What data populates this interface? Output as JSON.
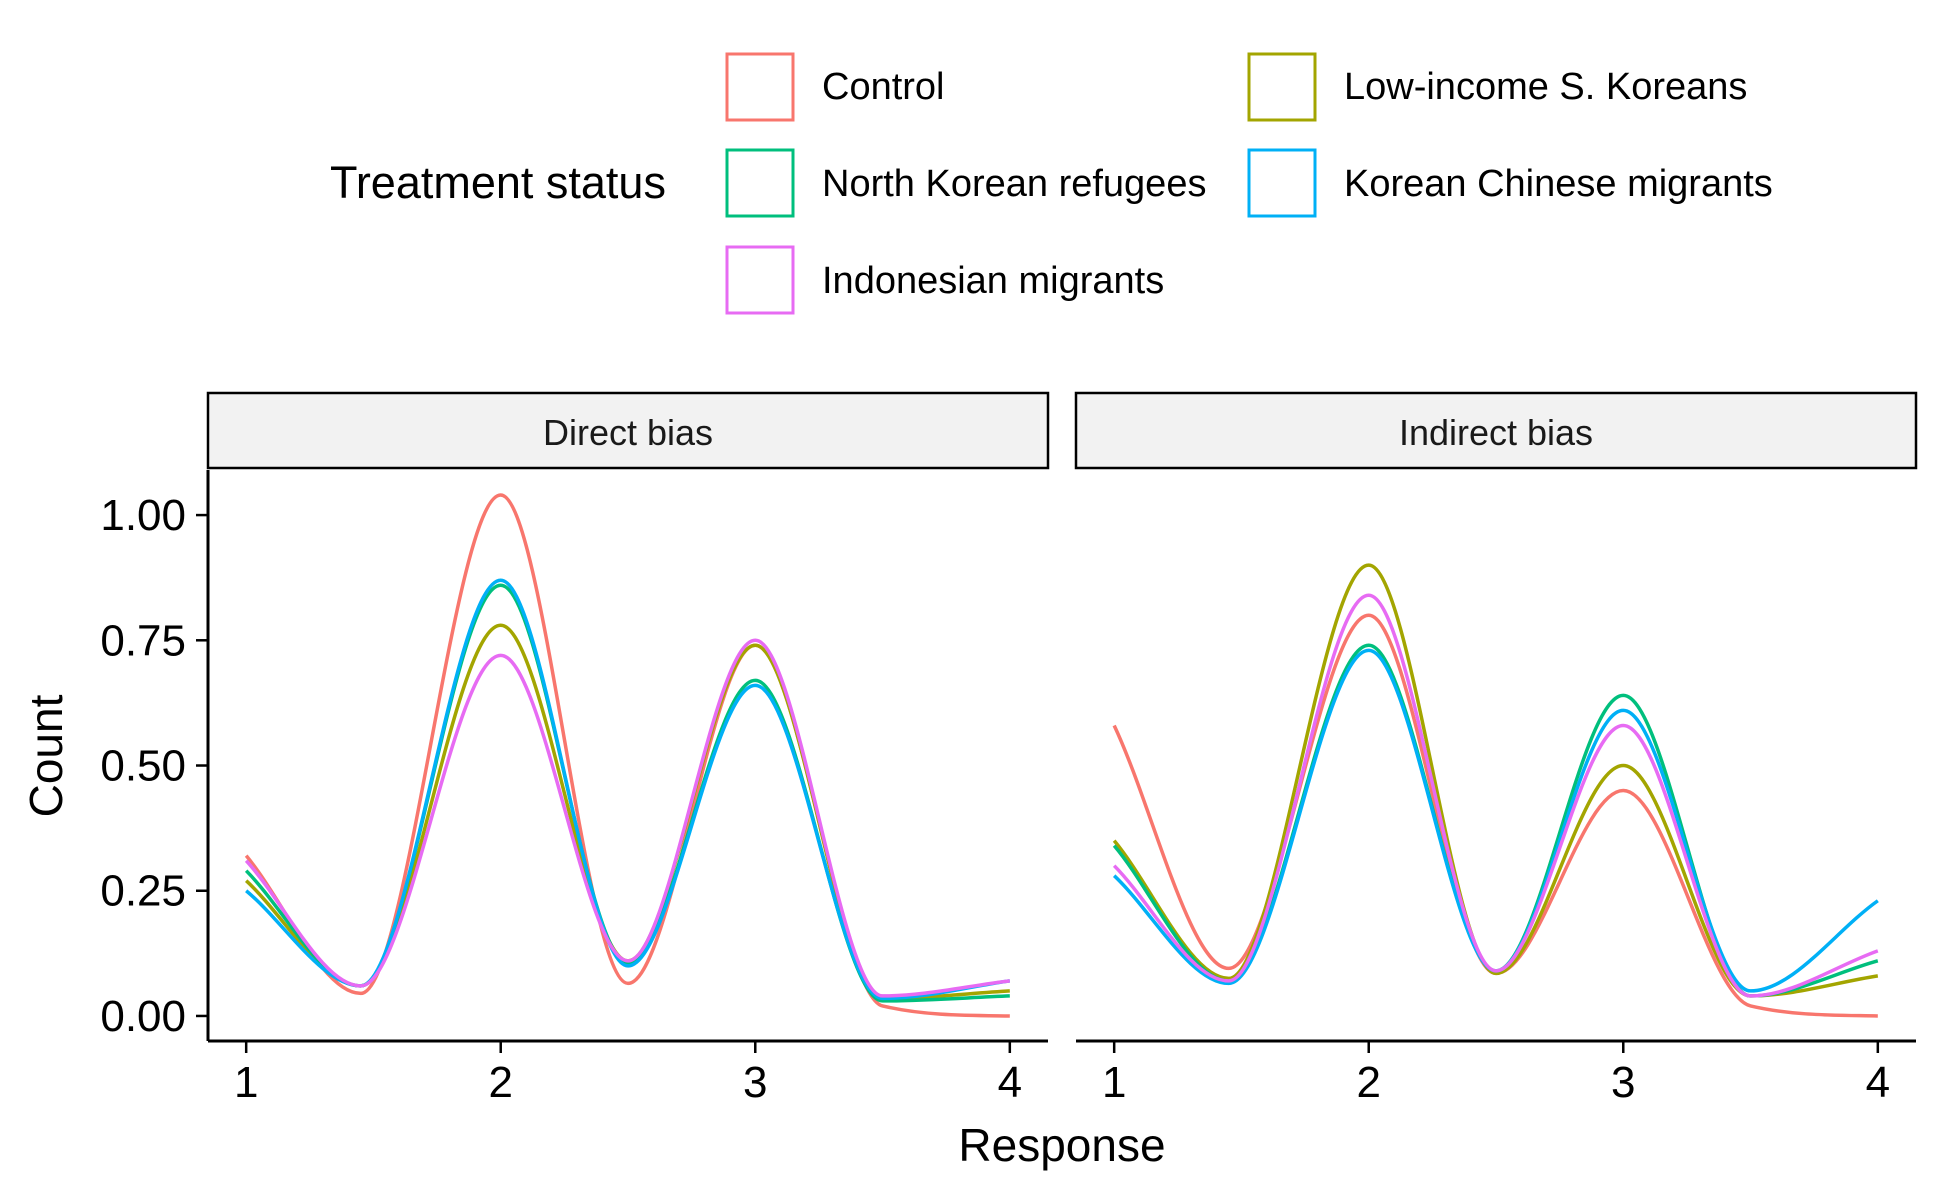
{
  "chart_data": {
    "type": "line",
    "xlabel": "Response",
    "ylabel": "Count",
    "xlim": [
      0.85,
      4.15
    ],
    "ylim": [
      -0.05,
      1.09
    ],
    "x_ticks": [
      1,
      2,
      3,
      4
    ],
    "y_ticks": [
      "0.00",
      "0.25",
      "0.50",
      "0.75",
      "1.00"
    ],
    "y_tick_values": [
      0,
      0.25,
      0.5,
      0.75,
      1.0
    ],
    "grid": false,
    "legend": {
      "title": "Treatment status",
      "position": "top",
      "entries": [
        "Control",
        "North Korean refugees",
        "Indonesian migrants",
        "Low-income S. Koreans",
        "Korean Chinese migrants"
      ]
    },
    "colors": {
      "Control": "#F8766D",
      "Low-income S. Koreans": "#A3A500",
      "North Korean refugees": "#00BF7D",
      "Korean Chinese migrants": "#00B0F6",
      "Indonesian migrants": "#E76BF3"
    },
    "panels": [
      {
        "title": "Direct bias",
        "series": [
          {
            "name": "Control",
            "x": [
              1,
              1.45,
              2,
              2.5,
              3,
              3.5,
              4
            ],
            "values": [
              0.32,
              0.045,
              1.04,
              0.065,
              0.74,
              0.02,
              0.0
            ]
          },
          {
            "name": "Low-income S. Koreans",
            "x": [
              1,
              1.45,
              2,
              2.5,
              3,
              3.5,
              4
            ],
            "values": [
              0.27,
              0.06,
              0.78,
              0.11,
              0.74,
              0.035,
              0.05
            ]
          },
          {
            "name": "North Korean refugees",
            "x": [
              1,
              1.45,
              2,
              2.5,
              3,
              3.5,
              4
            ],
            "values": [
              0.29,
              0.06,
              0.86,
              0.105,
              0.67,
              0.03,
              0.04
            ]
          },
          {
            "name": "Korean Chinese migrants",
            "x": [
              1,
              1.45,
              2,
              2.5,
              3,
              3.5,
              4
            ],
            "values": [
              0.25,
              0.06,
              0.87,
              0.1,
              0.66,
              0.035,
              0.07
            ]
          },
          {
            "name": "Indonesian migrants",
            "x": [
              1,
              1.45,
              2,
              2.5,
              3,
              3.5,
              4
            ],
            "values": [
              0.31,
              0.06,
              0.72,
              0.11,
              0.75,
              0.04,
              0.07
            ]
          }
        ]
      },
      {
        "title": "Indirect bias",
        "series": [
          {
            "name": "Control",
            "x": [
              1,
              1.45,
              2,
              2.5,
              3,
              3.5,
              4
            ],
            "values": [
              0.58,
              0.095,
              0.8,
              0.085,
              0.45,
              0.02,
              0.0
            ]
          },
          {
            "name": "Low-income S. Koreans",
            "x": [
              1,
              1.45,
              2,
              2.5,
              3,
              3.5,
              4
            ],
            "values": [
              0.35,
              0.075,
              0.9,
              0.085,
              0.5,
              0.04,
              0.08
            ]
          },
          {
            "name": "North Korean refugees",
            "x": [
              1,
              1.45,
              2,
              2.5,
              3,
              3.5,
              4
            ],
            "values": [
              0.34,
              0.07,
              0.74,
              0.09,
              0.64,
              0.04,
              0.11
            ]
          },
          {
            "name": "Korean Chinese migrants",
            "x": [
              1,
              1.45,
              2,
              2.5,
              3,
              3.5,
              4
            ],
            "values": [
              0.28,
              0.065,
              0.73,
              0.09,
              0.61,
              0.05,
              0.23
            ]
          },
          {
            "name": "Indonesian migrants",
            "x": [
              1,
              1.45,
              2,
              2.5,
              3,
              3.5,
              4
            ],
            "values": [
              0.3,
              0.07,
              0.84,
              0.09,
              0.58,
              0.04,
              0.13
            ]
          }
        ]
      }
    ]
  }
}
